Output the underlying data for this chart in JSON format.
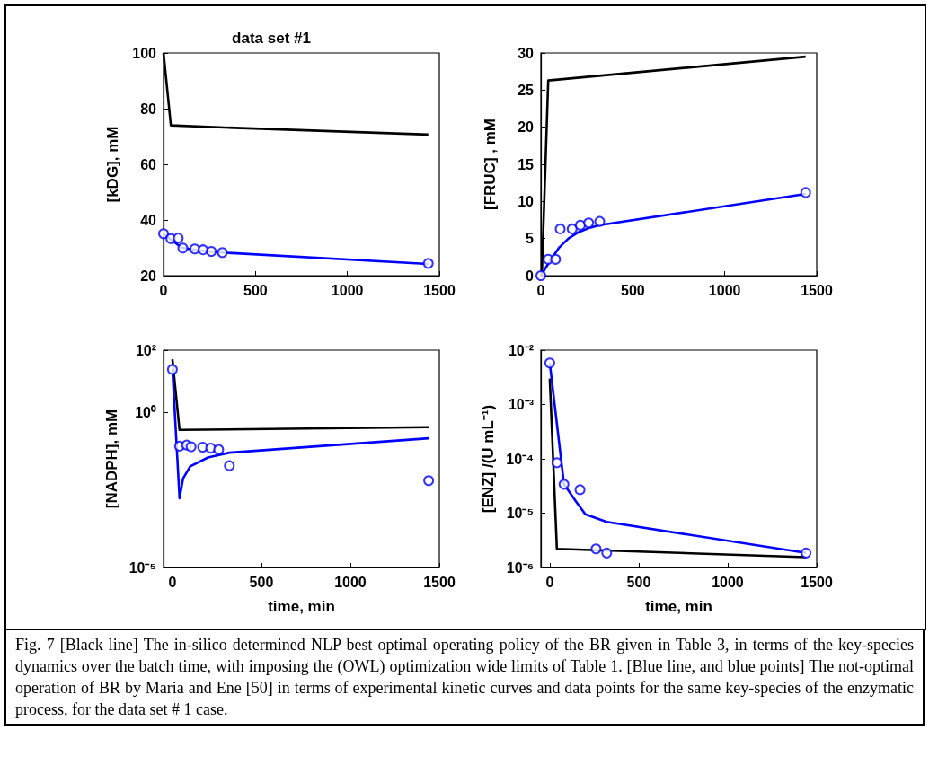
{
  "chart_data": [
    {
      "type": "line",
      "title": "data set #1",
      "ylabel": "[kDG], mM",
      "xlim": [
        0,
        1500
      ],
      "xticks": [
        0,
        500,
        1000,
        1500
      ],
      "ylim": [
        20,
        100
      ],
      "yticks": [
        20,
        40,
        60,
        80,
        100
      ],
      "annotations": [
        "Fig. 7 [Black line] The in-silico determined NLP best optimal operating policy of the BR given in Table 3, in terms of the key-species dynamics over the batch time, with imposing the (OWL) optimization wide limits of Table 1. [Blue line, and blue points] The not-optimal operation of BR by Maria and Ene [50] in terms of experimental kinetic curves and data points for the same key-species of the enzymatic process, for the data set # 1 case."
      ],
      "series": [
        {
          "type": "line",
          "color": "#000000",
          "x": [
            0,
            40,
            300,
            1440
          ],
          "values": [
            100,
            74,
            73.3,
            70.7
          ]
        },
        {
          "type": "line",
          "color": "#0000ff",
          "x": [
            0,
            40,
            100,
            200,
            320,
            1440
          ],
          "values": [
            35,
            33,
            30,
            29,
            28.3,
            24.2
          ]
        },
        {
          "type": "scatter",
          "marker": "circle",
          "color": "#0000ff",
          "x": [
            0,
            40,
            80,
            105,
            170,
            215,
            260,
            320,
            1440
          ],
          "values": [
            35.1,
            33.3,
            33.5,
            29.9,
            29.6,
            29.3,
            28.7,
            28.3,
            24.4
          ]
        }
      ]
    },
    {
      "type": "line",
      "ylabel": "[FRUC] , mM",
      "xlim": [
        0,
        1500
      ],
      "xticks": [
        0,
        500,
        1000,
        1500
      ],
      "ylim": [
        0,
        30
      ],
      "yticks": [
        0,
        5,
        10,
        15,
        20,
        25,
        30
      ],
      "series": [
        {
          "type": "line",
          "color": "#000000",
          "x": [
            5,
            40,
            1440
          ],
          "values": [
            0,
            26.3,
            29.5
          ]
        },
        {
          "type": "line",
          "color": "#0000ff",
          "x": [
            0,
            50,
            100,
            150,
            200,
            260,
            320,
            1440
          ],
          "values": [
            0,
            2,
            3.8,
            5,
            5.8,
            6.4,
            6.8,
            11
          ]
        },
        {
          "type": "scatter",
          "marker": "circle",
          "color": "#0000ff",
          "x": [
            0,
            40,
            80,
            105,
            170,
            215,
            260,
            320,
            1440
          ],
          "values": [
            0,
            2.2,
            2.2,
            6.3,
            6.3,
            6.8,
            7.1,
            7.3,
            11.2
          ]
        }
      ]
    },
    {
      "type": "line",
      "xlabel": "time, min",
      "ylabel": "[NADPH], mM",
      "log": "y",
      "xlim": [
        -50,
        1500
      ],
      "xticks": [
        0,
        500,
        1000,
        1500
      ],
      "ylim": [
        1e-05,
        100
      ],
      "yticks": [
        {
          "value": 100,
          "label": "10²"
        },
        {
          "value": 1,
          "label": "10⁰"
        },
        {
          "value": 1e-05,
          "label": "10⁻⁵"
        }
      ],
      "series": [
        {
          "type": "line",
          "color": "#000000",
          "x": [
            0,
            40,
            1440
          ],
          "values": [
            51,
            0.27,
            0.33
          ]
        },
        {
          "type": "line",
          "color": "#0000ff",
          "x": [
            0,
            40,
            60,
            100,
            200,
            320,
            1440
          ],
          "values": [
            24,
            0.0017,
            0.0074,
            0.018,
            0.035,
            0.05,
            0.145
          ]
        },
        {
          "type": "scatter",
          "marker": "circle",
          "color": "#0000ff",
          "x": [
            0,
            40,
            80,
            105,
            170,
            215,
            260,
            320,
            1440
          ],
          "values": [
            24,
            0.081,
            0.088,
            0.078,
            0.075,
            0.07,
            0.063,
            0.019,
            0.0063
          ]
        }
      ]
    },
    {
      "type": "line",
      "xlabel": "time, min",
      "ylabel": "[ENZ] /(U mL⁻¹)",
      "log": "y",
      "xlim": [
        -50,
        1500
      ],
      "xticks": [
        0,
        500,
        1000,
        1500
      ],
      "ylim": [
        1e-06,
        0.01
      ],
      "yticks": [
        {
          "value": 0.01,
          "label": "10⁻²"
        },
        {
          "value": 0.001,
          "label": "10⁻³"
        },
        {
          "value": 0.0001,
          "label": "10⁻⁴"
        },
        {
          "value": 1e-05,
          "label": "10⁻⁵"
        },
        {
          "value": 1e-06,
          "label": "10⁻⁶"
        }
      ],
      "series": [
        {
          "type": "line",
          "color": "#000000",
          "x": [
            0,
            40,
            1440
          ],
          "values": [
            0.003,
            2.2e-06,
            1.55e-06
          ]
        },
        {
          "type": "line",
          "color": "#0000ff",
          "x": [
            0,
            80,
            150,
            200,
            320,
            1440
          ],
          "values": [
            0.0058,
            3.4e-05,
            1.6e-05,
            9.5e-06,
            6.9e-06,
            1.85e-06
          ]
        },
        {
          "type": "scatter",
          "marker": "circle",
          "color": "#0000ff",
          "x": [
            0,
            40,
            80,
            170,
            260,
            320,
            1440
          ],
          "values": [
            0.0058,
            8.5e-05,
            3.4e-05,
            2.7e-05,
            2.2e-06,
            1.85e-06,
            1.85e-06
          ]
        }
      ]
    }
  ]
}
